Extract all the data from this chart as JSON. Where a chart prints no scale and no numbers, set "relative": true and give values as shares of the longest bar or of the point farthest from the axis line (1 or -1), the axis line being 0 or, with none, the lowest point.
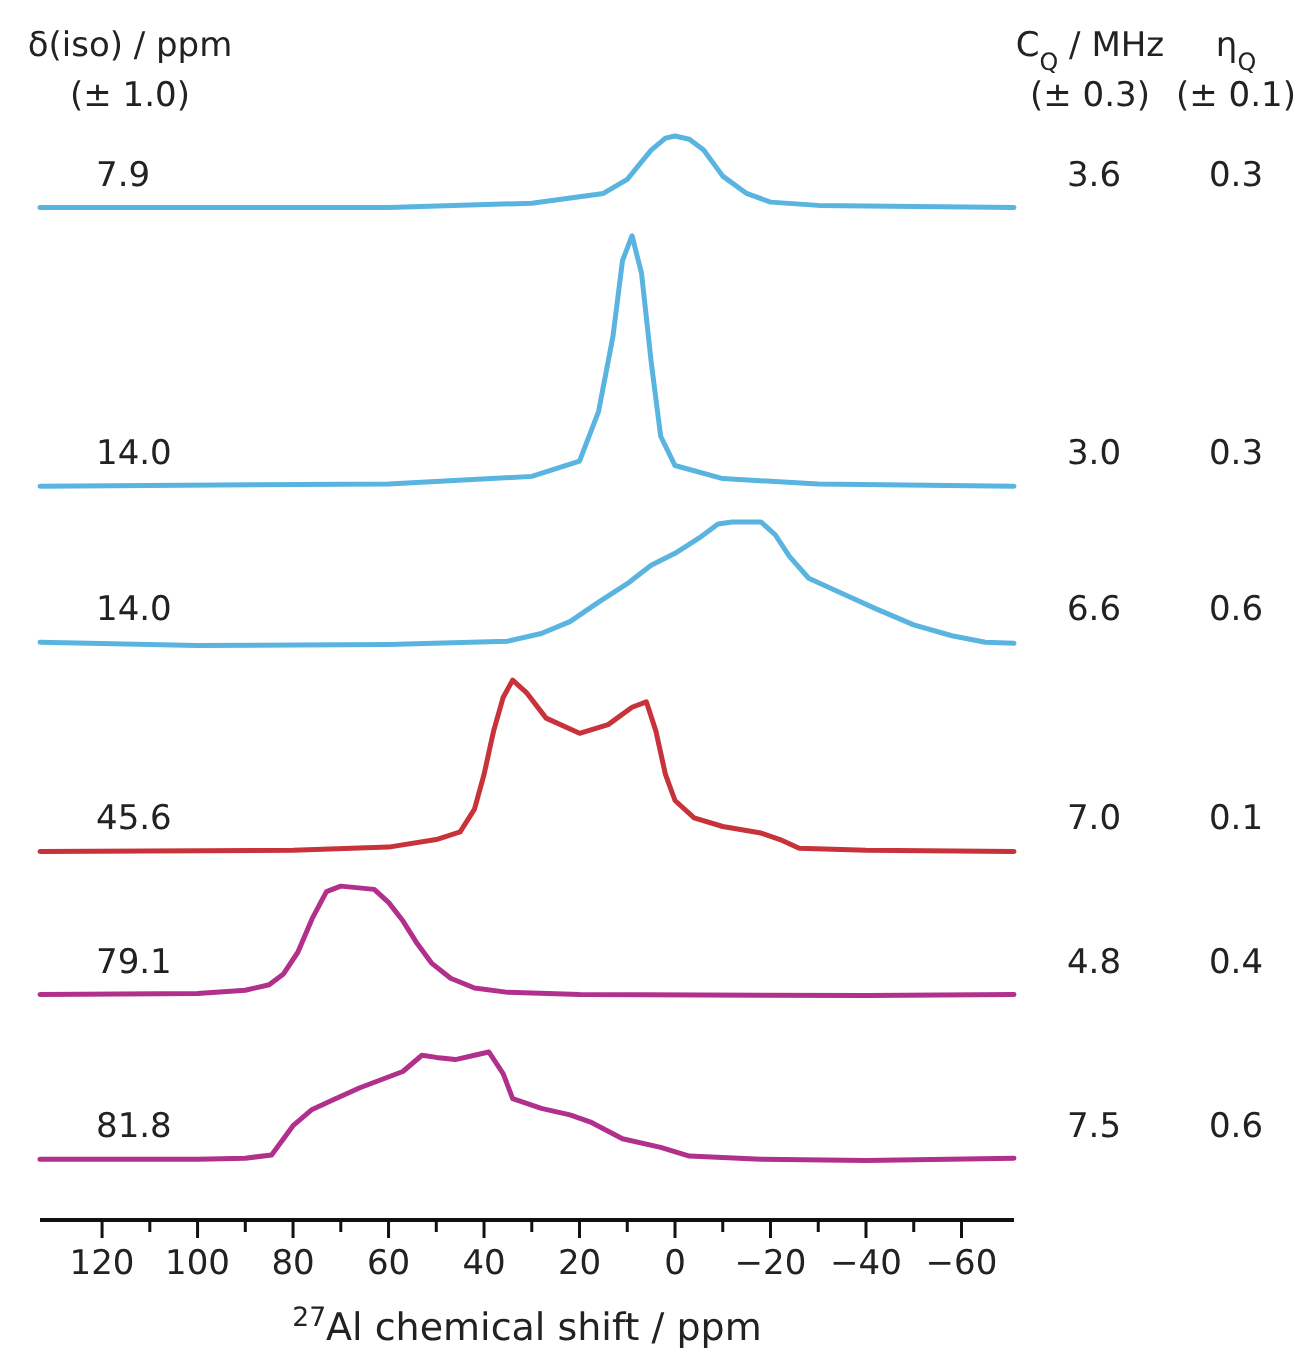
{
  "chart_data": {
    "type": "line",
    "relative": true,
    "xlim": [
      133,
      -71
    ],
    "xlabel": "$^{27}$Al chemical shift / ppm",
    "xticks": [
      120,
      {
        "value": 110,
        "label": null
      },
      100,
      {
        "value": 90,
        "label": null
      },
      80,
      {
        "value": 70,
        "label": null
      },
      60,
      {
        "value": 50,
        "label": null
      },
      40,
      {
        "value": 30,
        "label": null
      },
      20,
      {
        "value": 10,
        "label": null
      },
      0,
      {
        "value": -10,
        "label": null
      },
      {
        "value": -20,
        "label": "−20"
      },
      {
        "value": -30,
        "label": null
      },
      {
        "value": -40,
        "label": "−40"
      },
      {
        "value": -50,
        "label": null
      },
      {
        "value": -60,
        "label": "−60"
      }
    ],
    "annotations": [
      "δ(iso) / ppm",
      "(± 1.0)",
      "C$_{Q}$ / MHz",
      "(± 0.3)",
      "η$_{Q}$",
      "(± 0.1)",
      "7.9",
      "3.6",
      "0.3",
      "14.0",
      "3.0",
      "0.3",
      "14.0",
      "6.6",
      "0.6",
      "45.6",
      "7.0",
      "0.1",
      "79.1",
      "4.8",
      "0.4",
      "81.8",
      "7.5",
      "0.6"
    ],
    "series": [
      {
        "color": "#5ab4e0",
        "x": [
          133,
          60,
          30,
          15,
          10,
          5,
          2,
          0,
          -3,
          -6,
          -10,
          -15,
          -20,
          -30,
          -71
        ],
        "values": [
          0.934,
          0.934,
          0.938,
          0.947,
          0.96,
          0.987,
          0.998,
          1,
          0.997,
          0.987,
          0.963,
          0.947,
          0.939,
          0.936,
          0.934
        ]
      },
      {
        "color": "#5ab4e0",
        "x": [
          133,
          60,
          30,
          20,
          16,
          13,
          11,
          9,
          7,
          5,
          3,
          0,
          -10,
          -30,
          -71
        ],
        "values": [
          0.677,
          0.679,
          0.686,
          0.7,
          0.746,
          0.815,
          0.885,
          0.908,
          0.873,
          0.792,
          0.723,
          0.696,
          0.684,
          0.679,
          0.677
        ]
      },
      {
        "color": "#5ab4e0",
        "x": [
          133,
          100,
          60,
          35,
          28,
          22,
          16,
          10,
          5,
          0,
          -5,
          -9,
          -12,
          -18,
          -21,
          -24,
          -28,
          -35,
          -42,
          -50,
          -58,
          -65,
          -71
        ],
        "values": [
          0.533,
          0.53,
          0.531,
          0.534,
          0.541,
          0.552,
          0.57,
          0.587,
          0.604,
          0.615,
          0.629,
          0.642,
          0.644,
          0.644,
          0.632,
          0.612,
          0.592,
          0.578,
          0.564,
          0.549,
          0.539,
          0.533,
          0.532
        ]
      },
      {
        "color": "#c8323a",
        "x": [
          133,
          80,
          60,
          50,
          45,
          42,
          40,
          38,
          36,
          34,
          31,
          27,
          20,
          14,
          9,
          6,
          4,
          2,
          0,
          -4,
          -10,
          -18,
          -22,
          -26,
          -40,
          -71
        ],
        "values": [
          0.34,
          0.341,
          0.344,
          0.351,
          0.358,
          0.379,
          0.411,
          0.451,
          0.482,
          0.498,
          0.486,
          0.463,
          0.449,
          0.457,
          0.473,
          0.478,
          0.451,
          0.411,
          0.387,
          0.371,
          0.363,
          0.357,
          0.351,
          0.343,
          0.341,
          0.34
        ]
      },
      {
        "color": "#b0308c",
        "x": [
          133,
          100,
          90,
          85,
          82,
          79,
          76,
          73,
          70,
          63,
          60,
          57,
          54,
          51,
          47,
          42,
          35,
          20,
          -40,
          -71
        ],
        "values": [
          0.208,
          0.209,
          0.212,
          0.217,
          0.227,
          0.247,
          0.278,
          0.303,
          0.308,
          0.305,
          0.293,
          0.276,
          0.255,
          0.237,
          0.223,
          0.214,
          0.21,
          0.208,
          0.207,
          0.208
        ]
      },
      {
        "color": "#b0308c",
        "x": [
          133,
          100,
          90,
          84.5,
          80,
          76,
          71,
          66,
          57,
          53,
          50,
          46,
          42,
          39,
          36,
          34,
          28,
          22,
          17.5,
          11,
          3,
          -3,
          -18,
          -40,
          -71
        ],
        "values": [
          0.056,
          0.056,
          0.057,
          0.06,
          0.087,
          0.102,
          0.112,
          0.122,
          0.137,
          0.152,
          0.15,
          0.148,
          0.152,
          0.155,
          0.135,
          0.112,
          0.103,
          0.097,
          0.09,
          0.075,
          0.067,
          0.059,
          0.056,
          0.055,
          0.057
        ]
      }
    ]
  }
}
